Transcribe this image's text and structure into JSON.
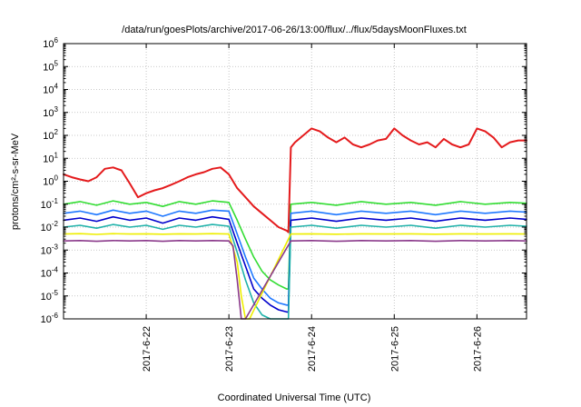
{
  "chart_data": {
    "type": "line",
    "title": "/data/run/goesPlots/archive/2017-06-26/13:00/flux/../flux/5daysMoonFluxes.txt",
    "xlabel": "Coordinated Universal Time (UTC)",
    "ylabel": "protons/cm²-s-sr-MeV",
    "y_scale": "log",
    "ylim": [
      1e-06,
      1000000.0
    ],
    "xlim": [
      -1.0,
      4.6
    ],
    "grid": true,
    "legend": "none",
    "x_ticks": [
      {
        "x": 0,
        "label": "2017-6-22"
      },
      {
        "x": 1,
        "label": "2017-6-23"
      },
      {
        "x": 2,
        "label": "2017-6-24"
      },
      {
        "x": 3,
        "label": "2017-6-25"
      },
      {
        "x": 4,
        "label": "2017-6-26"
      }
    ],
    "y_ticks": [
      {
        "y": 1e-06,
        "base": "10",
        "exp": "-6"
      },
      {
        "y": 1e-05,
        "base": "10",
        "exp": "-5"
      },
      {
        "y": 0.0001,
        "base": "10",
        "exp": "-4"
      },
      {
        "y": 0.001,
        "base": "10",
        "exp": "-3"
      },
      {
        "y": 0.01,
        "base": "10",
        "exp": "-2"
      },
      {
        "y": 0.1,
        "base": "10",
        "exp": "-1"
      },
      {
        "y": 1,
        "base": "10",
        "exp": "0"
      },
      {
        "y": 10,
        "base": "10",
        "exp": "1"
      },
      {
        "y": 100,
        "base": "10",
        "exp": "2"
      },
      {
        "y": 1000,
        "base": "10",
        "exp": "3"
      },
      {
        "y": 10000,
        "base": "10",
        "exp": "4"
      },
      {
        "y": 100000,
        "base": "10",
        "exp": "5"
      },
      {
        "y": 1000000,
        "base": "10",
        "exp": "6"
      }
    ],
    "series": [
      {
        "color": "#e41a1c",
        "x": [
          -1.0,
          -0.9,
          -0.8,
          -0.7,
          -0.6,
          -0.5,
          -0.4,
          -0.3,
          -0.2,
          -0.1,
          0.0,
          0.1,
          0.2,
          0.3,
          0.4,
          0.5,
          0.6,
          0.7,
          0.8,
          0.9,
          1.0,
          1.1,
          1.2,
          1.3,
          1.4,
          1.5,
          1.6,
          1.7,
          1.72,
          1.75,
          1.8,
          1.9,
          2.0,
          2.1,
          2.2,
          2.3,
          2.4,
          2.5,
          2.6,
          2.7,
          2.8,
          2.9,
          3.0,
          3.1,
          3.2,
          3.3,
          3.4,
          3.5,
          3.6,
          3.7,
          3.8,
          3.9,
          4.0,
          4.1,
          4.2,
          4.3,
          4.4,
          4.5,
          4.6
        ],
        "y": [
          2.0,
          1.5,
          1.2,
          1.0,
          1.5,
          3.5,
          4.0,
          3.0,
          0.8,
          0.2,
          0.3,
          0.4,
          0.5,
          0.7,
          1.0,
          1.5,
          2.0,
          2.5,
          3.5,
          4.0,
          2.0,
          0.5,
          0.2,
          0.08,
          0.04,
          0.02,
          0.01,
          0.007,
          0.006,
          30,
          50,
          100,
          200,
          150,
          80,
          50,
          80,
          40,
          30,
          40,
          60,
          70,
          200,
          100,
          60,
          40,
          50,
          30,
          70,
          40,
          30,
          40,
          200,
          150,
          80,
          30,
          50,
          60,
          60
        ]
      },
      {
        "color": "#33dd33",
        "x": [
          -1.0,
          -0.8,
          -0.6,
          -0.4,
          -0.2,
          0.0,
          0.2,
          0.4,
          0.6,
          0.8,
          1.0,
          1.1,
          1.2,
          1.3,
          1.4,
          1.5,
          1.6,
          1.7,
          1.72,
          1.75,
          2.0,
          2.3,
          2.6,
          2.9,
          3.2,
          3.5,
          3.8,
          4.1,
          4.4,
          4.6
        ],
        "y": [
          0.1,
          0.13,
          0.09,
          0.14,
          0.1,
          0.12,
          0.08,
          0.13,
          0.1,
          0.14,
          0.12,
          0.02,
          0.003,
          0.0005,
          0.00012,
          5e-05,
          3e-05,
          2e-05,
          2e-05,
          0.1,
          0.12,
          0.09,
          0.13,
          0.1,
          0.12,
          0.09,
          0.13,
          0.1,
          0.12,
          0.11
        ]
      },
      {
        "color": "#1f78ff",
        "x": [
          -1.0,
          -0.8,
          -0.6,
          -0.4,
          -0.2,
          0.0,
          0.2,
          0.4,
          0.6,
          0.8,
          1.0,
          1.1,
          1.2,
          1.3,
          1.4,
          1.5,
          1.6,
          1.7,
          1.72,
          1.75,
          2.0,
          2.3,
          2.6,
          2.9,
          3.2,
          3.5,
          3.8,
          4.1,
          4.4,
          4.6
        ],
        "y": [
          0.04,
          0.05,
          0.035,
          0.055,
          0.04,
          0.05,
          0.03,
          0.05,
          0.04,
          0.055,
          0.05,
          0.005,
          0.0005,
          6e-05,
          2e-05,
          8e-06,
          5e-06,
          4e-06,
          4e-06,
          0.04,
          0.05,
          0.035,
          0.05,
          0.04,
          0.05,
          0.035,
          0.05,
          0.04,
          0.05,
          0.045
        ]
      },
      {
        "color": "#0000cc",
        "x": [
          -1.0,
          -0.8,
          -0.6,
          -0.4,
          -0.2,
          0.0,
          0.2,
          0.4,
          0.6,
          0.8,
          1.0,
          1.1,
          1.2,
          1.3,
          1.4,
          1.5,
          1.6,
          1.7,
          1.72,
          1.75,
          2.0,
          2.3,
          2.6,
          2.9,
          3.2,
          3.5,
          3.8,
          4.1,
          4.4,
          4.6
        ],
        "y": [
          0.02,
          0.025,
          0.018,
          0.028,
          0.02,
          0.025,
          0.015,
          0.025,
          0.02,
          0.028,
          0.022,
          0.002,
          0.0002,
          2e-05,
          8e-06,
          4e-06,
          2.5e-06,
          2e-06,
          2e-06,
          0.02,
          0.025,
          0.018,
          0.025,
          0.02,
          0.025,
          0.018,
          0.025,
          0.02,
          0.025,
          0.022
        ]
      },
      {
        "color": "#20b2aa",
        "x": [
          -1.0,
          -0.8,
          -0.6,
          -0.4,
          -0.2,
          0.0,
          0.2,
          0.4,
          0.6,
          0.8,
          1.0,
          1.1,
          1.2,
          1.3,
          1.4,
          1.5,
          1.6,
          1.7,
          1.72,
          1.75,
          2.0,
          2.3,
          2.6,
          2.9,
          3.2,
          3.5,
          3.8,
          4.1,
          4.4,
          4.6
        ],
        "y": [
          0.01,
          0.012,
          0.009,
          0.013,
          0.01,
          0.012,
          0.008,
          0.012,
          0.01,
          0.013,
          0.011,
          0.0008,
          5e-05,
          5e-06,
          1.5e-06,
          1e-06,
          1e-06,
          1e-06,
          1e-06,
          0.01,
          0.012,
          0.009,
          0.012,
          0.01,
          0.012,
          0.009,
          0.012,
          0.01,
          0.012,
          0.011
        ]
      },
      {
        "color": "#eeee00",
        "x": [
          -1.0,
          -0.8,
          -0.6,
          -0.4,
          -0.2,
          0.0,
          0.2,
          0.4,
          0.6,
          0.8,
          1.0,
          1.1,
          1.15,
          1.2,
          1.25,
          1.75,
          2.0,
          2.3,
          2.6,
          2.9,
          3.2,
          3.5,
          3.8,
          4.1,
          4.4,
          4.6
        ],
        "y": [
          0.005,
          0.0052,
          0.0048,
          0.0052,
          0.005,
          0.0051,
          0.0049,
          0.0051,
          0.005,
          0.0052,
          0.005,
          0.0003,
          1e-05,
          1e-06,
          1e-06,
          0.005,
          0.0051,
          0.0049,
          0.0051,
          0.005,
          0.0051,
          0.0049,
          0.0051,
          0.005,
          0.0051,
          0.005
        ]
      },
      {
        "color": "#8b3a8b",
        "x": [
          -1.0,
          -0.8,
          -0.6,
          -0.4,
          -0.2,
          0.0,
          0.2,
          0.4,
          0.6,
          0.8,
          1.0,
          1.05,
          1.1,
          1.15,
          1.2,
          1.75,
          2.0,
          2.3,
          2.6,
          2.9,
          3.2,
          3.5,
          3.8,
          4.1,
          4.4,
          4.6
        ],
        "y": [
          0.0025,
          0.0026,
          0.0024,
          0.0026,
          0.0025,
          0.0026,
          0.0024,
          0.0026,
          0.0025,
          0.0026,
          0.0025,
          0.0015,
          5e-05,
          1e-06,
          1e-06,
          0.0025,
          0.0026,
          0.0024,
          0.0026,
          0.0025,
          0.0026,
          0.0024,
          0.0026,
          0.0025,
          0.0026,
          0.0025
        ]
      }
    ]
  }
}
